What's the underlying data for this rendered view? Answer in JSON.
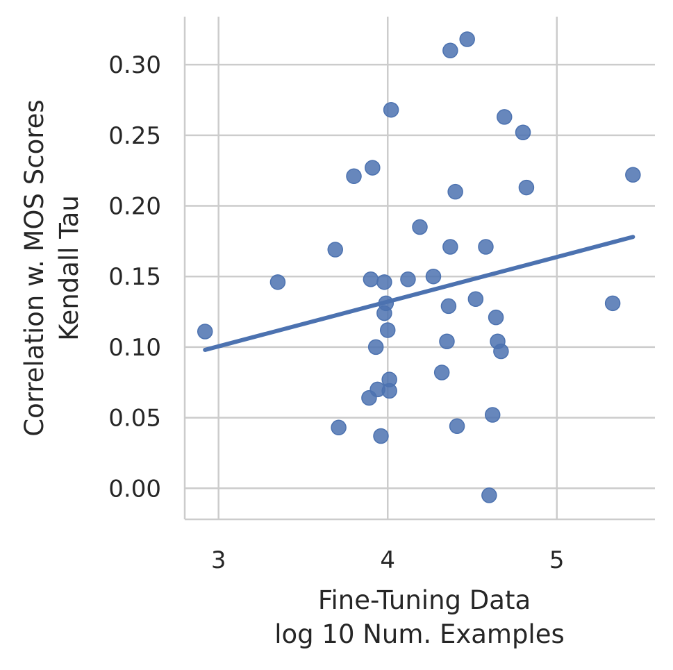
{
  "chart_data": {
    "type": "scatter",
    "xlabel_lines": [
      "Fine-Tuning Data",
      "log 10 Num. Examples"
    ],
    "ylabel_lines": [
      "Correlation w. MOS Scores",
      "Kendall Tau"
    ],
    "xlim": [
      2.8,
      5.58
    ],
    "ylim": [
      -0.022,
      0.334
    ],
    "xticks": [
      3,
      4,
      5
    ],
    "xtick_labels": [
      "3",
      "4",
      "5"
    ],
    "yticks": [
      0.0,
      0.05,
      0.1,
      0.15,
      0.2,
      0.25,
      0.3
    ],
    "ytick_labels": [
      "0.00",
      "0.05",
      "0.10",
      "0.15",
      "0.20",
      "0.25",
      "0.30"
    ],
    "grid": true,
    "color": "#4c72b0",
    "points": [
      {
        "x": 2.92,
        "y": 0.111
      },
      {
        "x": 3.35,
        "y": 0.146
      },
      {
        "x": 3.69,
        "y": 0.169
      },
      {
        "x": 3.71,
        "y": 0.043
      },
      {
        "x": 3.8,
        "y": 0.221
      },
      {
        "x": 3.89,
        "y": 0.064
      },
      {
        "x": 3.9,
        "y": 0.148
      },
      {
        "x": 3.91,
        "y": 0.227
      },
      {
        "x": 3.93,
        "y": 0.1
      },
      {
        "x": 3.94,
        "y": 0.07
      },
      {
        "x": 3.96,
        "y": 0.037
      },
      {
        "x": 3.98,
        "y": 0.124
      },
      {
        "x": 3.98,
        "y": 0.146
      },
      {
        "x": 3.99,
        "y": 0.131
      },
      {
        "x": 4.0,
        "y": 0.112
      },
      {
        "x": 4.01,
        "y": 0.077
      },
      {
        "x": 4.01,
        "y": 0.069
      },
      {
        "x": 4.02,
        "y": 0.268
      },
      {
        "x": 4.12,
        "y": 0.148
      },
      {
        "x": 4.19,
        "y": 0.185
      },
      {
        "x": 4.27,
        "y": 0.15
      },
      {
        "x": 4.32,
        "y": 0.082
      },
      {
        "x": 4.35,
        "y": 0.104
      },
      {
        "x": 4.36,
        "y": 0.129
      },
      {
        "x": 4.37,
        "y": 0.31
      },
      {
        "x": 4.37,
        "y": 0.171
      },
      {
        "x": 4.4,
        "y": 0.21
      },
      {
        "x": 4.41,
        "y": 0.044
      },
      {
        "x": 4.47,
        "y": 0.318
      },
      {
        "x": 4.52,
        "y": 0.134
      },
      {
        "x": 4.58,
        "y": 0.171
      },
      {
        "x": 4.6,
        "y": -0.005
      },
      {
        "x": 4.62,
        "y": 0.052
      },
      {
        "x": 4.64,
        "y": 0.121
      },
      {
        "x": 4.65,
        "y": 0.104
      },
      {
        "x": 4.67,
        "y": 0.097
      },
      {
        "x": 4.69,
        "y": 0.263
      },
      {
        "x": 4.8,
        "y": 0.252
      },
      {
        "x": 4.82,
        "y": 0.213
      },
      {
        "x": 5.33,
        "y": 0.131
      },
      {
        "x": 5.45,
        "y": 0.222
      }
    ],
    "trendline": {
      "x": [
        2.92,
        5.45
      ],
      "y": [
        0.098,
        0.178
      ]
    }
  }
}
